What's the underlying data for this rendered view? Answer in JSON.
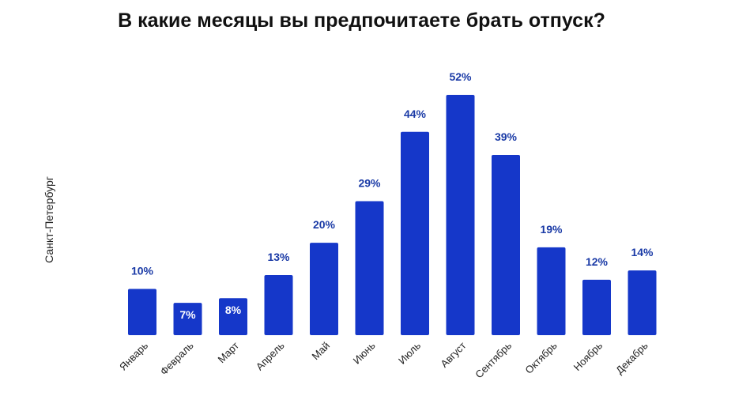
{
  "chart_data": {
    "type": "bar",
    "title": "В какие месяцы вы предпочитаете брать отпуск?",
    "ylabel": "Санкт-Петербург",
    "xlabel": "",
    "categories": [
      "Январь",
      "Февраль",
      "Март",
      "Апрель",
      "Май",
      "Июнь",
      "Июль",
      "Август",
      "Сентябрь",
      "Октябрь",
      "Ноябрь",
      "Декабрь"
    ],
    "values": [
      10,
      7,
      8,
      13,
      20,
      29,
      44,
      52,
      39,
      19,
      12,
      14
    ],
    "value_labels": [
      "10%",
      "7%",
      "8%",
      "13%",
      "20%",
      "29%",
      "44%",
      "52%",
      "39%",
      "19%",
      "12%",
      "14%"
    ],
    "ylim": [
      0,
      52
    ],
    "grid": false,
    "legend": "none",
    "colors": {
      "bar": "#1537c9",
      "label": "#1a3aa6",
      "label_inside": "#ffffff"
    }
  }
}
